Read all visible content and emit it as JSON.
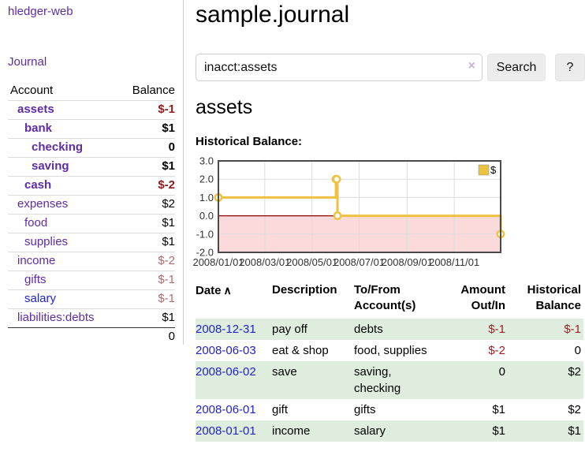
{
  "app": {
    "title": "hledger-web"
  },
  "colors": {
    "link_purple": "#5e2ca5",
    "link_blue": "#2323cc",
    "negative_strong": "#8f1d1d",
    "negative_muted": "#b06b6b",
    "table_negative": "#9e1f1f",
    "row_stripe_green": "#dfeddf",
    "button_bg": "#ececec",
    "divider": "#cccccc"
  },
  "sidebar": {
    "journal_link": "Journal",
    "accounts": {
      "headers": {
        "account": "Account",
        "balance": "Balance"
      },
      "rows": [
        {
          "name": "assets",
          "balance": "$-1"
        },
        {
          "name": "bank",
          "balance": "$1"
        },
        {
          "name": "checking",
          "balance": "0"
        },
        {
          "name": "saving",
          "balance": "$1"
        },
        {
          "name": "cash",
          "balance": "$-2"
        },
        {
          "name": "expenses",
          "balance": "$2"
        },
        {
          "name": "food",
          "balance": "$1"
        },
        {
          "name": "supplies",
          "balance": "$1"
        },
        {
          "name": "income",
          "balance": "$-2"
        },
        {
          "name": "gifts",
          "balance": "$-1"
        },
        {
          "name": "salary",
          "balance": "$-1"
        },
        {
          "name": "liabilities:debts",
          "balance": "$1"
        }
      ],
      "total": "0"
    }
  },
  "main": {
    "title": "sample.journal",
    "search": {
      "value": "inacct:assets",
      "clear_icon": "×",
      "button_label": "Search",
      "help_label": "?"
    },
    "account_heading": "assets",
    "register": {
      "headers": {
        "date": "Date",
        "sort_icon": "∧",
        "description": "Description",
        "accounts": "To/From Account(s)",
        "amount": "Amount Out/In",
        "balance": "Historical Balance"
      },
      "rows": [
        {
          "date": "2008-12-31",
          "description": "pay off",
          "accounts": "debts",
          "amount": "$-1",
          "balance": "$-1"
        },
        {
          "date": "2008-06-03",
          "description": "eat & shop",
          "accounts": "food, supplies",
          "amount": "$-2",
          "balance": "0"
        },
        {
          "date": "2008-06-02",
          "description": "save",
          "accounts": "saving, checking",
          "amount": "0",
          "balance": "$2"
        },
        {
          "date": "2008-06-01",
          "description": "gift",
          "accounts": "gifts",
          "amount": "$1",
          "balance": "$2"
        },
        {
          "date": "2008-01-01",
          "description": "income",
          "accounts": "salary",
          "amount": "$1",
          "balance": "$1"
        }
      ]
    }
  },
  "chart_data": {
    "type": "line",
    "title": "Historical Balance:",
    "step": true,
    "series": [
      {
        "name": "$",
        "color": "#edc240",
        "points": [
          {
            "date": "2008-01-01",
            "value": 1
          },
          {
            "date": "2008-06-01",
            "value": 2
          },
          {
            "date": "2008-06-02",
            "value": 2
          },
          {
            "date": "2008-06-03",
            "value": 0
          },
          {
            "date": "2008-12-31",
            "value": -1
          }
        ]
      }
    ],
    "ylim": [
      -2.0,
      3.0
    ],
    "yticks": [
      3.0,
      2.0,
      1.0,
      0.0,
      -1.0,
      -2.0
    ],
    "xticks": [
      "2008/01/01",
      "2008/03/01",
      "2008/05/01",
      "2008/07/01",
      "2008/09/01",
      "2008/11/01"
    ],
    "x_range": [
      "2008-01-01",
      "2008-12-31"
    ],
    "legend": {
      "position": "top-right"
    },
    "grid": true,
    "colors": {
      "negative_region": "#fadada",
      "zero_line": "#8b0000",
      "grid": "#dddddd",
      "border": "#4a4a4a"
    }
  }
}
